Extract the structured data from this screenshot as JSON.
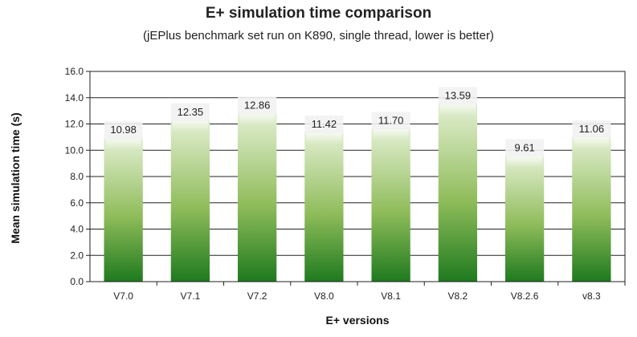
{
  "chart_data": {
    "type": "bar",
    "title": "E+ simulation time comparison",
    "subtitle": "(jEPlus benchmark set run on K890, single thread, lower is better)",
    "xlabel": "E+ versions",
    "ylabel": "Mean simulation time (s)",
    "categories": [
      "V7.0",
      "V7.1",
      "V7.2",
      "V8.0",
      "V8.1",
      "V8.2",
      "V8.2.6",
      "v8.3"
    ],
    "values": [
      10.98,
      12.35,
      12.86,
      11.42,
      11.7,
      13.59,
      9.61,
      11.06
    ],
    "value_labels": [
      "10.98",
      "12.35",
      "12.86",
      "11.42",
      "11.70",
      "13.59",
      "9.61",
      "11.06"
    ],
    "ylim": [
      0,
      16
    ],
    "yticks": [
      "0.0",
      "2.0",
      "4.0",
      "6.0",
      "8.0",
      "10.0",
      "12.0",
      "14.0",
      "16.0"
    ],
    "grid": true,
    "legend": "none",
    "colors": {
      "bar_bottom": "#1e7a1e",
      "bar_mid": "#8fbc5a",
      "bar_top": "#e4f0d4",
      "grid": "#222222",
      "plot_bg": "#ffffff"
    }
  }
}
